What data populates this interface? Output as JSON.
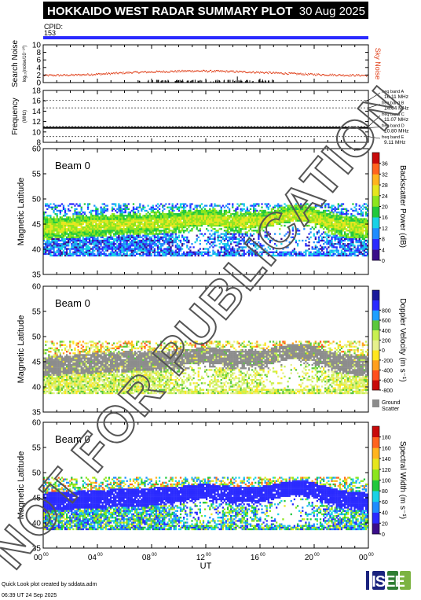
{
  "header": {
    "title": "HOKKAIDO WEST RADAR SUMMARY PLOT",
    "date": "30 Aug 2025",
    "cpid_label": "CPID:",
    "cpid_value": "153"
  },
  "colors": {
    "cpid_bar": "#2a2aff",
    "sky_noise": "#e0401a",
    "ground_scatter": "#8c8c8c"
  },
  "chart_data": [
    {
      "type": "scatter",
      "panel": "noise",
      "ylabel": "Search Noise",
      "ylabel_sub": "log₁₀(noise/10⁻¹⁰)",
      "right_label": "Sky Noise",
      "ylim": [
        0,
        10
      ],
      "yticks": [
        "0",
        "2",
        "4",
        "6",
        "8",
        "10"
      ],
      "sky_noise_level": [
        2.0,
        2.1,
        2.4,
        2.8,
        3.0,
        3.2,
        3.1,
        2.9,
        2.6,
        2.3,
        2.1,
        2.0
      ]
    },
    {
      "type": "line",
      "panel": "frequency",
      "ylabel": "Frequency",
      "ylabel_sub": "(MHz)",
      "ylim": [
        8,
        18
      ],
      "yticks": [
        "8",
        "10",
        "12",
        "14",
        "16",
        "18"
      ],
      "bands": [
        {
          "name": "freq band A",
          "value": "16.11 MHz",
          "freq": 16.11
        },
        {
          "name": "freq band B",
          "value": "14.64 MHz",
          "freq": 14.64
        },
        {
          "name": "freq band C",
          "value": "11.07 MHz",
          "freq": 11.07
        },
        {
          "name": "freq band D",
          "value": "10.80 MHz",
          "freq": 10.8
        },
        {
          "name": "freq band E",
          "value": "9.11 MHz",
          "freq": 9.11
        }
      ],
      "operating_freq": 10.8
    },
    {
      "type": "heatmap",
      "panel": "power",
      "beam_label": "Beam  0",
      "ylabel": "Magnetic Latitude",
      "ylim": [
        35,
        60
      ],
      "yticks": [
        "35",
        "40",
        "45",
        "50",
        "55",
        "60"
      ],
      "colorbar_label": "Backscatter Power (dB)",
      "colorbar_ticks": [
        "0",
        "4",
        "8",
        "12",
        "16",
        "20",
        "24",
        "28",
        "32",
        "36"
      ],
      "colorbar_range": [
        0,
        36
      ]
    },
    {
      "type": "heatmap",
      "panel": "velocity",
      "beam_label": "Beam  0",
      "ylabel": "Magnetic Latitude",
      "ylim": [
        35,
        60
      ],
      "yticks": [
        "35",
        "40",
        "45",
        "50",
        "55",
        "60"
      ],
      "colorbar_label": "Doppler Velocity (m s⁻¹)",
      "colorbar_ticks": [
        "-800",
        "-600",
        "-400",
        "-200",
        "0",
        "200",
        "400",
        "600",
        "800"
      ],
      "colorbar_range": [
        -800,
        800
      ],
      "ground_scatter_label_1": "Ground",
      "ground_scatter_label_2": "Scatter"
    },
    {
      "type": "heatmap",
      "panel": "width",
      "beam_label": "Beam  0",
      "ylabel": "Magnetic Latitude",
      "ylim": [
        35,
        60
      ],
      "yticks": [
        "35",
        "40",
        "45",
        "50",
        "55",
        "60"
      ],
      "colorbar_label": "Spectral Width (m s⁻¹)",
      "colorbar_ticks": [
        "0",
        "20",
        "40",
        "60",
        "80",
        "100",
        "120",
        "140",
        "160",
        "180"
      ],
      "colorbar_range": [
        0,
        180
      ]
    }
  ],
  "x_axis": {
    "label": "UT",
    "range_hours": [
      0,
      24
    ],
    "ticks": [
      {
        "h": 0,
        "main": "00",
        "sup": "00"
      },
      {
        "h": 4,
        "main": "04",
        "sup": "00"
      },
      {
        "h": 8,
        "main": "08",
        "sup": "00"
      },
      {
        "h": 12,
        "main": "12",
        "sup": "00"
      },
      {
        "h": 16,
        "main": "16",
        "sup": "00"
      },
      {
        "h": 20,
        "main": "20",
        "sup": "00"
      },
      {
        "h": 24,
        "main": "00",
        "sup": "00"
      }
    ]
  },
  "footer": {
    "credit": "Quick Look plot created by sddata.adm",
    "timestamp": "06:39 UT 24 Sep 2025",
    "logo": "ISEE"
  },
  "watermark": "NOT FOR PUBLICATION"
}
